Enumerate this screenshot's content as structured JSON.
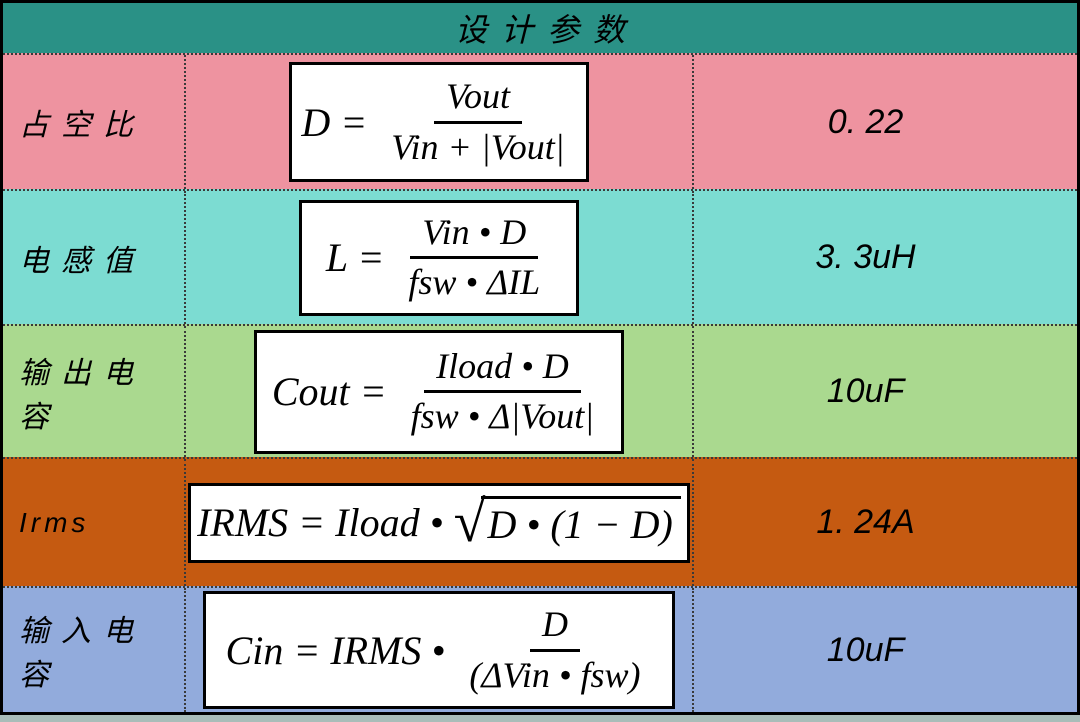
{
  "header": {
    "title": "设计参数"
  },
  "colors": {
    "header_bg": "#2A9186",
    "outer_border": "#000000",
    "formula_box_bg": "#FFFFFF",
    "bottom_strip": "#A9BDB9",
    "grid_dotted": "#3A3A3A"
  },
  "rows": [
    {
      "label": "占空比",
      "value": "0. 22",
      "bg": "#EE93A0",
      "formula": {
        "lhs": "D =",
        "numerator": "Vout",
        "denominator": "Vin + |Vout|"
      }
    },
    {
      "label": "电感值",
      "value": "3. 3uH",
      "bg": "#7CDCD2",
      "formula": {
        "lhs": "L =",
        "numerator": "Vin • D",
        "denominator": "fsw • ΔIL"
      }
    },
    {
      "label": "输出电容",
      "value": "10uF",
      "bg": "#AAD98F",
      "formula": {
        "lhs": "Cout =",
        "numerator": "Iload • D",
        "denominator": "fsw • Δ|Vout|"
      }
    },
    {
      "label": "Irms",
      "value": "1. 24A",
      "bg": "#C55A11",
      "formula": {
        "pre": "IRMS = Iload •",
        "radical": "√",
        "radicand": "D • (1 − D)"
      }
    },
    {
      "label": "输入电容",
      "value": "10uF",
      "bg": "#92ABDC",
      "formula": {
        "lhs": "Cin = IRMS •",
        "numerator": "D",
        "denominator": "(ΔVin • fsw)"
      }
    }
  ]
}
